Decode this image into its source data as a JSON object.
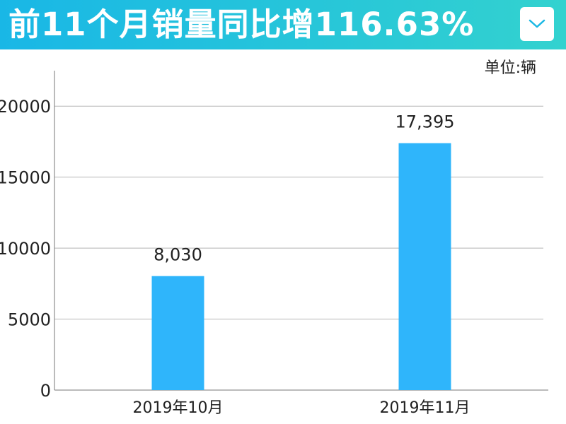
{
  "header": {
    "title": "前11个月销量同比增116.63%",
    "dropdown_icon": "chevron-down-icon",
    "accent_color": "#1bb8e4"
  },
  "unit_label": "单位:辆",
  "chart_data": {
    "type": "bar",
    "title": "",
    "xlabel": "",
    "ylabel": "",
    "categories": [
      "2019年10月",
      "2019年11月"
    ],
    "values": [
      8030,
      17395
    ],
    "value_labels": [
      "8,030",
      "17,395"
    ],
    "ylim": [
      0,
      22500
    ],
    "yticks": [
      0,
      5000,
      10000,
      15000,
      20000
    ],
    "ytick_labels": [
      "0",
      "5000",
      "10000",
      "15000",
      "20000"
    ],
    "grid": true,
    "bar_color": "#2fb5fb"
  }
}
